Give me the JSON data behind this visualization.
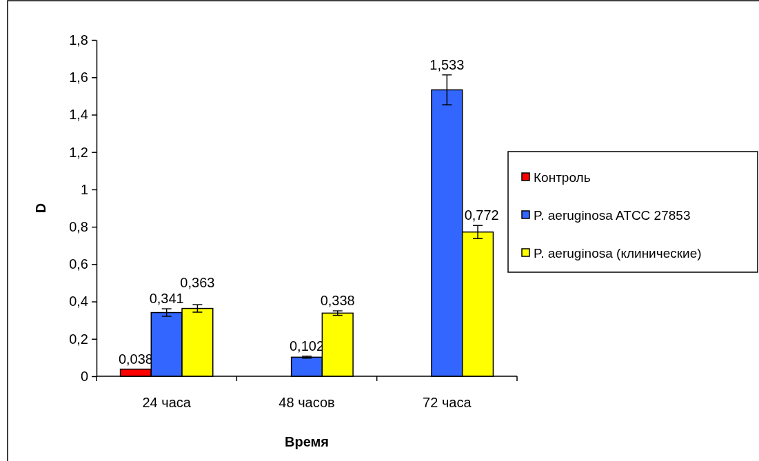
{
  "chart_data": {
    "type": "bar",
    "xlabel": "Время",
    "ylabel": "D",
    "categories": [
      "24 часа",
      "48 часов",
      "72 часа"
    ],
    "series": [
      {
        "name": "Контроль",
        "color": "#ff0000",
        "values": [
          0.038,
          null,
          null
        ],
        "value_labels": [
          "0,038",
          null,
          null
        ],
        "errors": [
          null,
          null,
          null
        ]
      },
      {
        "name": "P. aeruginosa ATCC 27853",
        "color": "#3366ff",
        "values": [
          0.341,
          0.102,
          1.533
        ],
        "value_labels": [
          "0,341",
          "0,102",
          "1,533"
        ],
        "errors": [
          0.02,
          0.005,
          0.08
        ]
      },
      {
        "name": "P. aeruginosa (клинические)",
        "color": "#ffff00",
        "values": [
          0.363,
          0.338,
          0.772
        ],
        "value_labels": [
          "0,363",
          "0,338",
          "0,772"
        ],
        "errors": [
          0.02,
          0.012,
          0.035
        ]
      }
    ],
    "ylim": [
      0,
      1.8
    ],
    "yticks": [
      {
        "value": 0,
        "label": "0"
      },
      {
        "value": 0.2,
        "label": "0,2"
      },
      {
        "value": 0.4,
        "label": "0,4"
      },
      {
        "value": 0.6,
        "label": "0,6"
      },
      {
        "value": 0.8,
        "label": "0,8"
      },
      {
        "value": 1,
        "label": "1"
      },
      {
        "value": 1.2,
        "label": "1,2"
      },
      {
        "value": 1.4,
        "label": "1,4"
      },
      {
        "value": 1.6,
        "label": "1,6"
      },
      {
        "value": 1.8,
        "label": "1,8"
      }
    ],
    "legend": "right",
    "grid": false
  }
}
